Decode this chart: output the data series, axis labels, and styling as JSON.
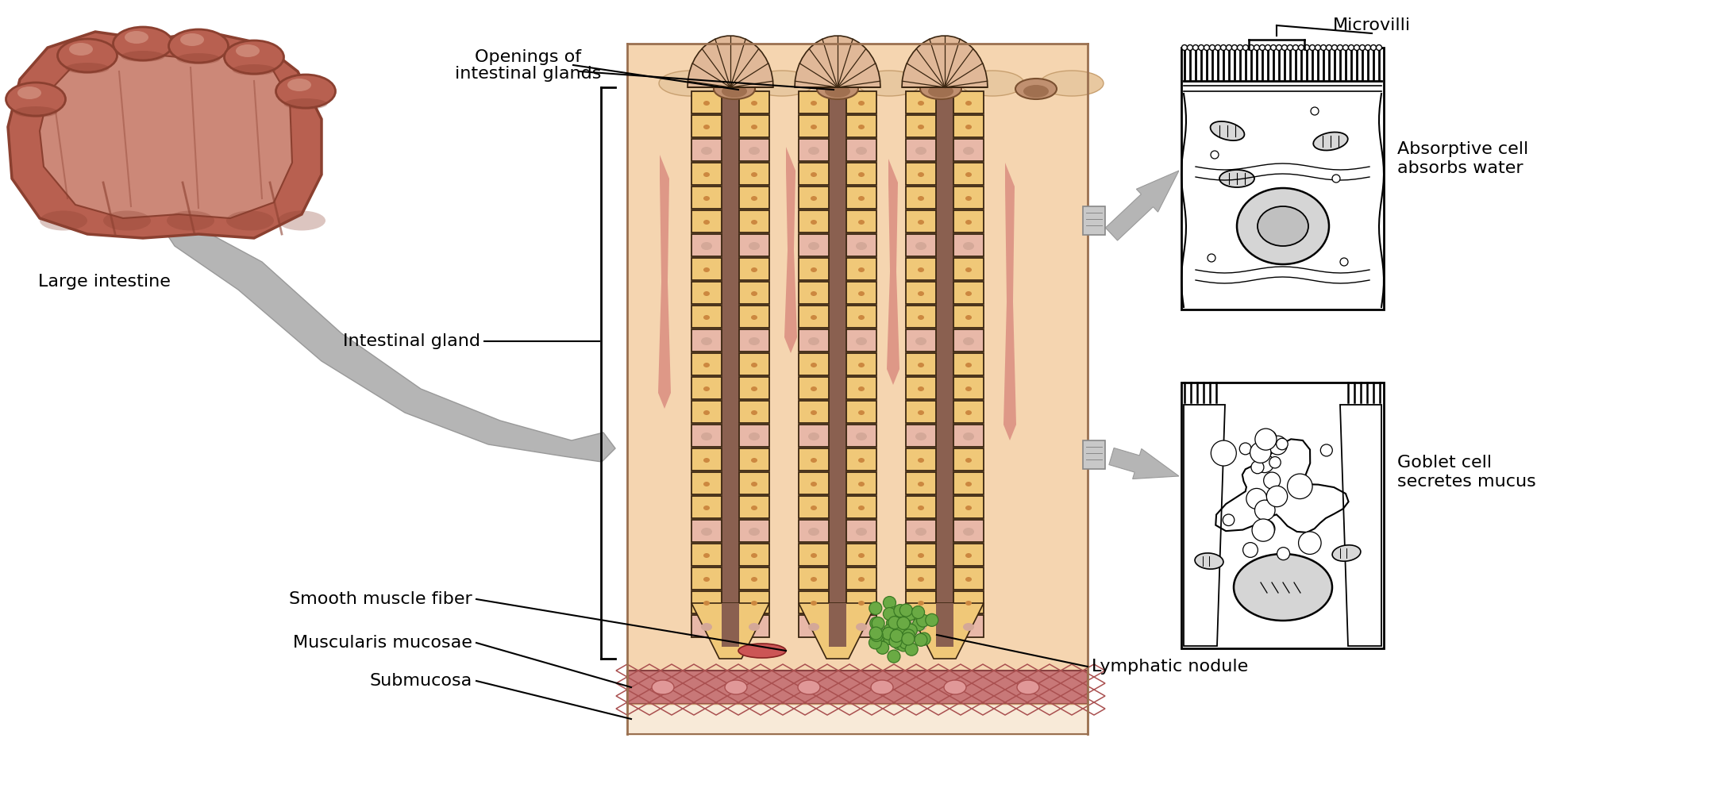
{
  "bg_color": "#ffffff",
  "tissue_bg": "#f5d5b0",
  "tissue_border": "#c8956a",
  "cell_fill_yellow": "#f0c878",
  "cell_fill_pink": "#e8b8a8",
  "cell_border": "#3a2510",
  "gland_lumen": "#a07868",
  "muscle_fill": "#c87878",
  "muscle_border": "#884040",
  "green_cell": "#6aaa44",
  "green_border": "#3a7a24",
  "arrow_fill": "#b0b0b0",
  "label_color": "#000000",
  "li_dark": "#8b4030",
  "li_mid": "#b86050",
  "li_light": "#cc8878",
  "li_highlight": "#e0aa98",
  "sub_fill": "#f8ead8",
  "labels": {
    "openings": "Openings of\nintestinal glands",
    "intestinal_gland": "Intestinal gland",
    "smooth_muscle": "Smooth muscle fiber",
    "muscularis": "Muscularis mucosae",
    "submucosa": "Submucosa",
    "lymphatic": "Lymphatic nodule",
    "large_intestine": "Large intestine",
    "microvilli": "Microvilli",
    "absorptive": "Absorptive cell\nabsorbs water",
    "goblet": "Goblet cell\nsecretes mucus"
  }
}
